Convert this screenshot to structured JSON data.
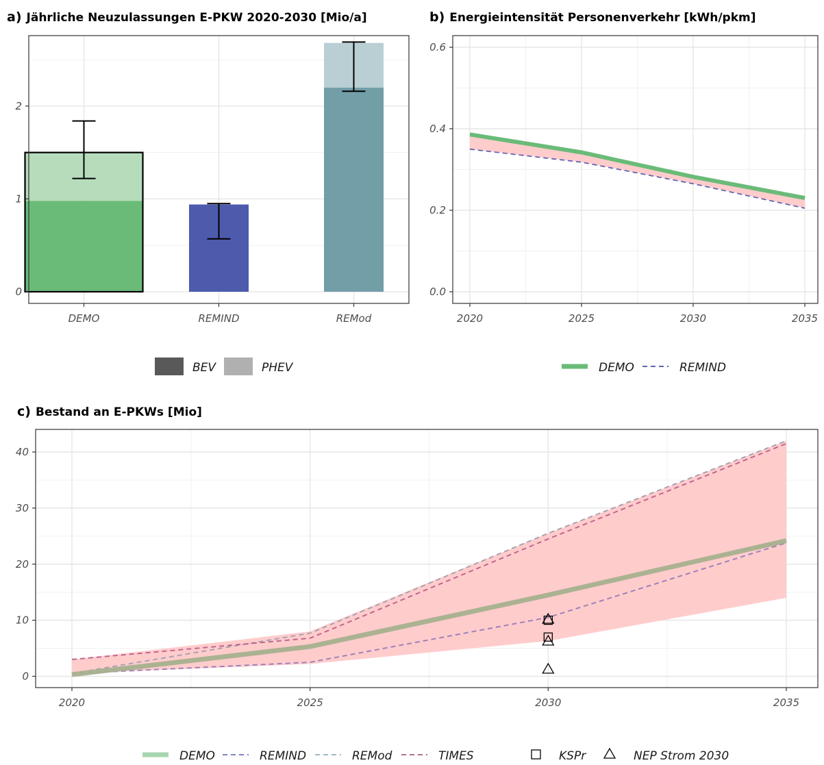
{
  "chart_data": [
    {
      "id": "a",
      "label": "a)",
      "title": "Jährliche Neuzulassungen E-PKW 2020-2030 [Mio/a]",
      "type": "bar",
      "stacked": true,
      "categories": [
        "DEMO",
        "REMIND",
        "REMod"
      ],
      "ylim": [
        0,
        2.7
      ],
      "yticks": [
        0,
        1,
        2
      ],
      "series": [
        {
          "name": "BEV",
          "values": [
            0.98,
            0.94,
            2.2
          ]
        },
        {
          "name": "PHEV",
          "values": [
            0.52,
            0.0,
            0.48
          ]
        }
      ],
      "bar_colors": {
        "DEMO": {
          "BEV": "#6abb78",
          "PHEV": "#b6dcbc"
        },
        "REMIND": {
          "BEV": "#4d5bad",
          "PHEV": "#a6add6"
        },
        "REMod": {
          "BEV": "#729ea7",
          "PHEV": "#b9cfd4"
        }
      },
      "outlined": [
        "DEMO"
      ],
      "error_bars": [
        {
          "category": "DEMO",
          "low": 1.22,
          "high": 1.84
        },
        {
          "category": "REMIND",
          "low": 0.57,
          "high": 0.95
        },
        {
          "category": "REMod",
          "low": 2.16,
          "high": 2.69
        }
      ],
      "legend": {
        "position": "bottom",
        "items": [
          {
            "name": "BEV",
            "color": "#595959"
          },
          {
            "name": "PHEV",
            "color": "#b0b0b0"
          }
        ]
      }
    },
    {
      "id": "b",
      "label": "b)",
      "title": "Energieintensität Personenverkehr [kWh/pkm]",
      "type": "line",
      "x": [
        2020,
        2025,
        2030,
        2035
      ],
      "xlim": [
        2019.5,
        2035.3
      ],
      "ylim": [
        0,
        0.6
      ],
      "yticks": [
        0.0,
        0.2,
        0.4,
        0.6
      ],
      "ytick_labels": [
        "0.0",
        "0.2",
        "0.4",
        "0.6"
      ],
      "band": {
        "color": "#ffcccc",
        "low": [
          0.35,
          0.318,
          0.265,
          0.205
        ],
        "high": [
          0.39,
          0.345,
          0.283,
          0.232
        ]
      },
      "series": [
        {
          "name": "DEMO",
          "values": [
            0.386,
            0.342,
            0.282,
            0.23
          ],
          "color": "#6abb78",
          "style": "solid"
        },
        {
          "name": "REMIND",
          "values": [
            0.35,
            0.318,
            0.265,
            0.205
          ],
          "color": "#5e65b3",
          "style": "dashed"
        }
      ],
      "legend": {
        "position": "bottom",
        "items": [
          {
            "name": "DEMO",
            "color": "#6abb78",
            "style": "solid"
          },
          {
            "name": "REMIND",
            "color": "#5e65b3",
            "style": "dashed"
          }
        ]
      }
    },
    {
      "id": "c",
      "label": "c)",
      "title": "Bestand an E-PKWs [Mio]",
      "type": "line",
      "x": [
        2020,
        2025,
        2030,
        2035
      ],
      "xlim": [
        2019.2,
        2035.3
      ],
      "ylim": [
        -1.5,
        43
      ],
      "yticks": [
        0,
        10,
        20,
        30,
        40
      ],
      "band": {
        "color": "#ffcccc",
        "low": [
          0.5,
          2.2,
          6.3,
          14.0
        ],
        "high": [
          3.0,
          8.0,
          25.5,
          42.0
        ]
      },
      "series": [
        {
          "name": "DEMO",
          "values": [
            0.3,
            5.3,
            14.5,
            24.2
          ],
          "color": "#a6b08e",
          "style": "solid"
        },
        {
          "name": "REMIND",
          "values": [
            0.5,
            2.5,
            10.5,
            23.8
          ],
          "color": "#9b82b8",
          "style": "dashed"
        },
        {
          "name": "REMod",
          "values": [
            0.5,
            7.7,
            25.5,
            42.0
          ],
          "color": "#a9a1b1",
          "style": "dashed"
        },
        {
          "name": "TIMES",
          "values": [
            3.0,
            6.8,
            24.5,
            41.5
          ],
          "color": "#c0668f",
          "style": "dashed"
        }
      ],
      "points": [
        {
          "name": "KSPr",
          "shape": "square",
          "x": 2030,
          "values": [
            10.0,
            7.0
          ]
        },
        {
          "name": "NEP Strom 2030",
          "shape": "triangle",
          "x": 2030,
          "values": [
            10.2,
            6.3,
            1.3
          ]
        }
      ],
      "legend": {
        "position": "bottom",
        "items": [
          {
            "name": "DEMO",
            "color": "#a7d6ae",
            "style": "solid"
          },
          {
            "name": "REMIND",
            "color": "#7c84c4",
            "style": "dashed"
          },
          {
            "name": "REMod",
            "color": "#9fbcc6",
            "style": "dashed"
          },
          {
            "name": "TIMES",
            "color": "#b56b8f",
            "style": "dashed"
          },
          {
            "name": "KSPr",
            "shape": "square"
          },
          {
            "name": "NEP Strom 2030",
            "shape": "triangle"
          }
        ]
      }
    }
  ]
}
